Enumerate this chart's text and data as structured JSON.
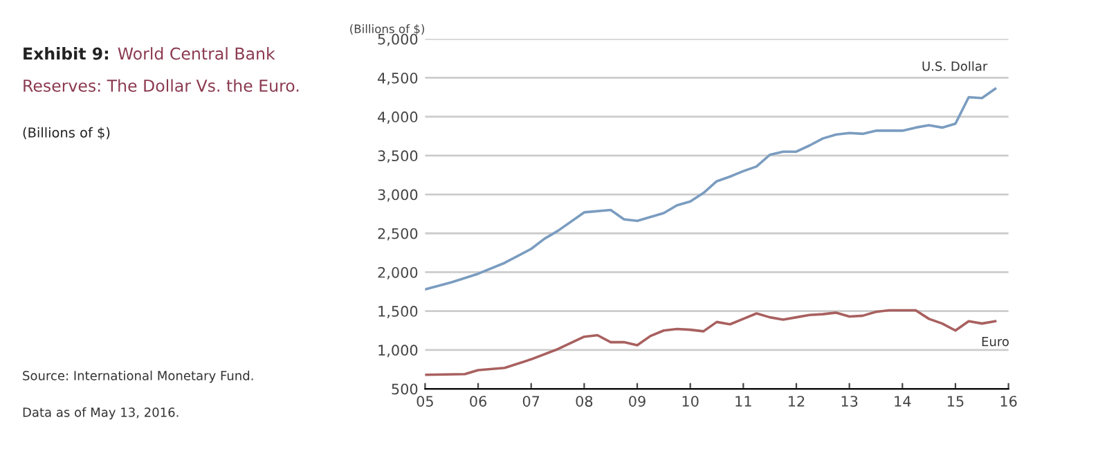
{
  "chart_data": {
    "type": "line",
    "title": [
      "Exhibit 9:",
      "World Central Bank",
      "Reserves: The Dollar Vs. the Euro."
    ],
    "subtitle": "(Billions of $)",
    "ylabel": "(Billions of $)",
    "annotations": [
      "Source: International Monetary Fund.",
      "Data as of May 13, 2016."
    ],
    "series": [
      {
        "name": "U.S. Dollar",
        "color": "#7a9cc0",
        "x": [
          5,
          5.5,
          6,
          6.5,
          7,
          7.25,
          7.5,
          8,
          8.5,
          8.75,
          9,
          9.5,
          9.75,
          10,
          10.25,
          10.5,
          10.75,
          11,
          11.25,
          11.5,
          11.75,
          12,
          12.25,
          12.5,
          12.75,
          13,
          13.25,
          13.5,
          14,
          14.25,
          14.5,
          14.75,
          15,
          15.25,
          15.5,
          15.75
        ],
        "values": [
          1780,
          1870,
          1980,
          2120,
          2300,
          2430,
          2530,
          2770,
          2800,
          2680,
          2660,
          2760,
          2860,
          2910,
          3020,
          3170,
          3230,
          3300,
          3360,
          3510,
          3550,
          3550,
          3630,
          3720,
          3770,
          3790,
          3780,
          3820,
          3820,
          3860,
          3890,
          3860,
          3910,
          4250,
          4240,
          4360
        ]
      },
      {
        "name": "Euro",
        "color": "#a8605f",
        "x": [
          5,
          5.75,
          6,
          6.5,
          7,
          7.5,
          7.75,
          8,
          8.25,
          8.5,
          8.75,
          9,
          9.25,
          9.5,
          9.75,
          10,
          10.25,
          10.5,
          10.75,
          11,
          11.25,
          11.5,
          11.75,
          12,
          12.25,
          12.5,
          12.75,
          13,
          13.25,
          13.5,
          13.75,
          14,
          14.25,
          14.5,
          14.75,
          15,
          15.25,
          15.5,
          15.75
        ],
        "values": [
          680,
          690,
          740,
          770,
          880,
          1010,
          1090,
          1170,
          1190,
          1100,
          1100,
          1060,
          1180,
          1250,
          1270,
          1260,
          1240,
          1360,
          1330,
          1400,
          1470,
          1420,
          1390,
          1420,
          1450,
          1460,
          1480,
          1430,
          1440,
          1490,
          1510,
          1510,
          1510,
          1400,
          1340,
          1250,
          1370,
          1340,
          1370
        ]
      }
    ],
    "xlim": [
      5,
      16
    ],
    "xticks": [
      {
        "value": 5,
        "label": "05"
      },
      {
        "value": 6,
        "label": "06"
      },
      {
        "value": 7,
        "label": "07"
      },
      {
        "value": 8,
        "label": "08"
      },
      {
        "value": 9,
        "label": "09"
      },
      {
        "value": 10,
        "label": "10"
      },
      {
        "value": 11,
        "label": "11"
      },
      {
        "value": 12,
        "label": "12"
      },
      {
        "value": 13,
        "label": "13"
      },
      {
        "value": 14,
        "label": "14"
      },
      {
        "value": 15,
        "label": "15"
      },
      {
        "value": 16,
        "label": "16"
      }
    ],
    "ylim": [
      500,
      5000
    ],
    "yticks": [
      {
        "value": 500,
        "label": "500"
      },
      {
        "value": 1000,
        "label": "1,000"
      },
      {
        "value": 1500,
        "label": "1,500"
      },
      {
        "value": 2000,
        "label": "2,000"
      },
      {
        "value": 2500,
        "label": "2,500"
      },
      {
        "value": 3000,
        "label": "3,000"
      },
      {
        "value": 3500,
        "label": "3,500"
      },
      {
        "value": 4000,
        "label": "4,000"
      },
      {
        "value": 4500,
        "label": "4,500"
      },
      {
        "value": 5000,
        "label": "5,000"
      }
    ],
    "grid": "y",
    "legend": false,
    "marker": "none",
    "line_style": "solid"
  }
}
